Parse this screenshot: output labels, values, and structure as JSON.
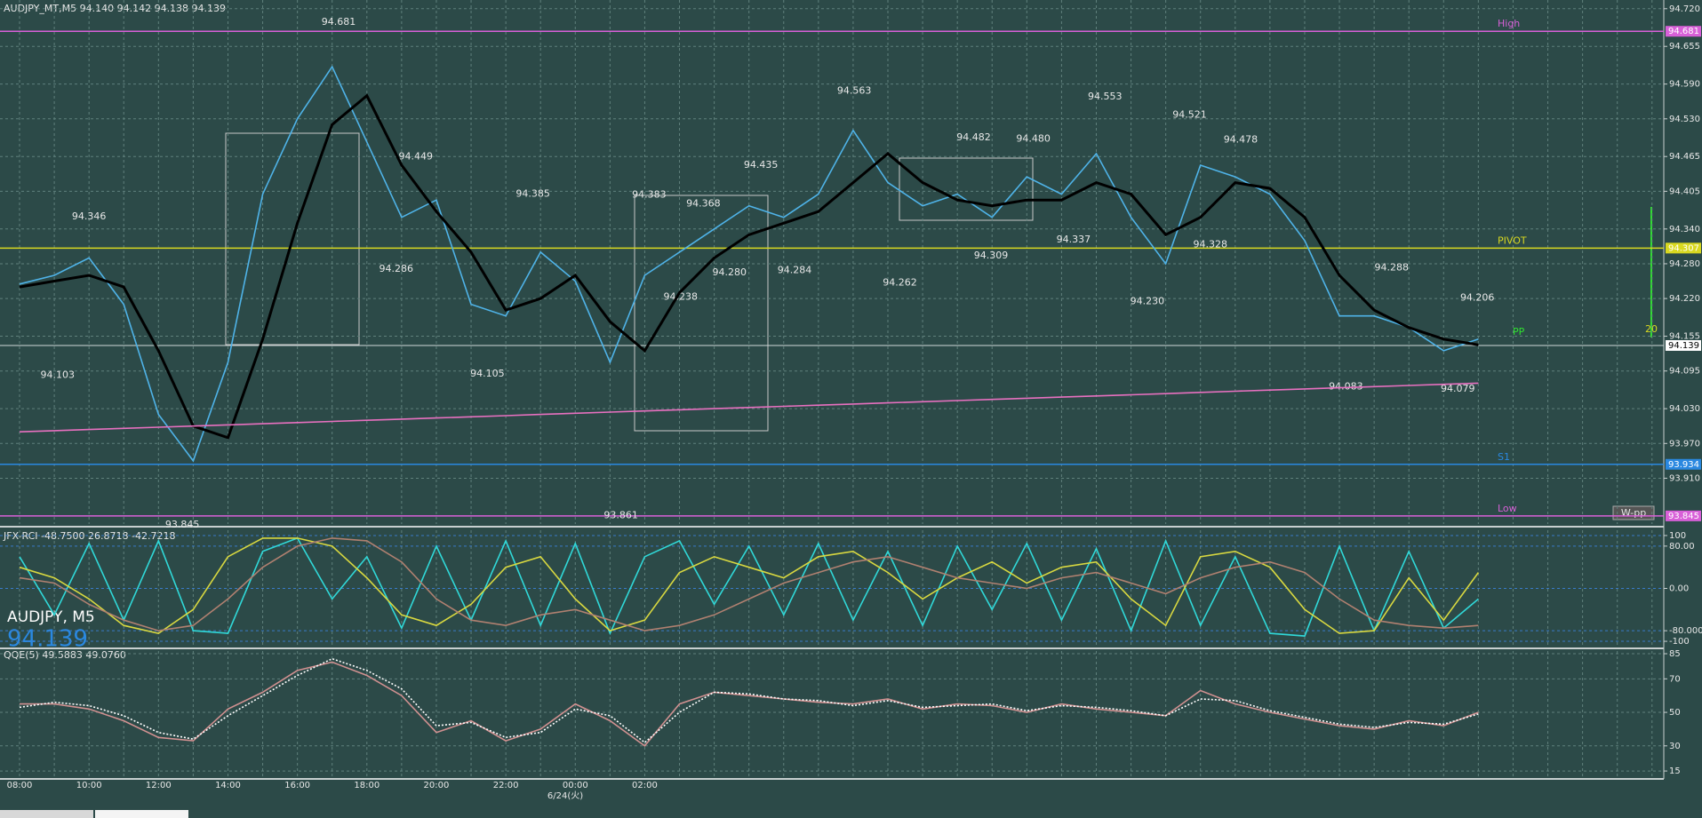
{
  "chart_data": [
    {
      "type": "line",
      "title": "AUDJPY_MT,M5  94.140 94.142 94.138 94.139",
      "categories": [
        "08:00",
        null,
        "10:00",
        null,
        "12:00",
        null,
        "14:00",
        null,
        "16:00",
        null,
        "18:00",
        null,
        "20:00",
        null,
        "22:00",
        null,
        "00:00",
        null,
        "02:00",
        null,
        null,
        null,
        null,
        null,
        null,
        null,
        null,
        null,
        null,
        null,
        null,
        null,
        null,
        null,
        null,
        null,
        null,
        null,
        null,
        null,
        null,
        null,
        null
      ],
      "date_label": "6/24(火)",
      "series": [
        {
          "color": "#4fb3e8",
          "values": [
            94.245,
            94.26,
            94.29,
            94.21,
            94.02,
            93.94,
            94.11,
            94.4,
            94.53,
            94.62,
            94.49,
            94.36,
            94.39,
            94.21,
            94.19,
            94.3,
            94.25,
            94.11,
            94.26,
            94.3,
            94.34,
            94.38,
            94.36,
            94.4,
            94.51,
            94.42,
            94.38,
            94.4,
            94.36,
            94.43,
            94.4,
            94.47,
            94.36,
            94.28,
            94.45,
            94.43,
            94.4,
            94.32,
            94.19,
            94.19,
            94.17,
            94.13,
            94.15
          ]
        },
        {
          "color": "#000000",
          "values": [
            94.24,
            94.25,
            94.26,
            94.24,
            94.13,
            94.0,
            93.98,
            94.15,
            94.35,
            94.52,
            94.57,
            94.45,
            94.37,
            94.3,
            94.2,
            94.22,
            94.26,
            94.18,
            94.13,
            94.23,
            94.29,
            94.33,
            94.35,
            94.37,
            94.42,
            94.47,
            94.42,
            94.39,
            94.38,
            94.39,
            94.39,
            94.42,
            94.4,
            94.33,
            94.36,
            94.42,
            94.41,
            94.36,
            94.26,
            94.2,
            94.17,
            94.15,
            94.14
          ]
        },
        {
          "color": "#e870c0",
          "values": [
            93.99,
            93.992,
            93.994,
            93.996,
            93.998,
            94.0,
            94.002,
            94.004,
            94.006,
            94.008,
            94.01,
            94.012,
            94.014,
            94.016,
            94.018,
            94.02,
            94.022,
            94.024,
            94.026,
            94.028,
            94.03,
            94.032,
            94.034,
            94.036,
            94.038,
            94.04,
            94.042,
            94.044,
            94.046,
            94.048,
            94.05,
            94.052,
            94.054,
            94.056,
            94.058,
            94.06,
            94.062,
            94.064,
            94.066,
            94.068,
            94.07,
            94.072,
            94.074
          ]
        }
      ],
      "ylim": [
        93.831,
        94.735
      ],
      "yticks": [
        {
          "value": 94.72,
          "label": "94.720"
        },
        94.655,
        {
          "value": 94.59,
          "label": "94.590"
        },
        {
          "value": 94.53,
          "label": "94.530"
        },
        94.465,
        94.405,
        {
          "value": 94.34,
          "label": "94.340"
        },
        {
          "value": 94.28,
          "label": "94.280"
        },
        {
          "value": 94.22,
          "label": "94.220"
        },
        94.155,
        94.095,
        {
          "value": 94.03,
          "label": "94.030"
        },
        {
          "value": 93.97,
          "label": "93.970"
        },
        {
          "value": 93.91,
          "label": "93.910"
        }
      ],
      "grid": true,
      "levels": [
        {
          "name": "High",
          "value": 94.681,
          "color": "#d860d8"
        },
        {
          "name": "PIVOT",
          "value": 94.307,
          "color": "#d8d820"
        },
        {
          "name": "S1",
          "value": 93.934,
          "color": "#2a88e0"
        },
        {
          "name": "Low",
          "value": 93.845,
          "color": "#d860d8"
        }
      ],
      "current_price": 94.139,
      "price_labels": [
        94.681,
        93.845,
        94.346,
        94.103,
        94.449,
        94.286,
        94.385,
        94.105,
        93.861,
        94.383,
        94.368,
        94.238,
        {
          "value": 94.28,
          "label": "94.280"
        },
        94.435,
        94.284,
        94.563,
        94.262,
        94.482,
        94.309,
        {
          "value": 94.48,
          "label": "94.480"
        },
        94.337,
        94.553,
        {
          "value": 94.23,
          "label": "94.230"
        },
        94.521,
        94.328,
        94.478,
        94.288,
        94.206,
        94.083,
        94.079
      ],
      "overlay_symbol": "AUDJPY, M5",
      "overlay_price": 94.139,
      "button": "W-pp",
      "side_value": 20,
      "side_label": "PP"
    },
    {
      "type": "line",
      "title": "JFX-RCI -48.7500 26.8718 -42.7218",
      "ylim": [
        -110,
        110
      ],
      "yticks": [
        100,
        {
          "value": 80,
          "label": "80.00"
        },
        {
          "value": 0,
          "label": "0.00"
        },
        {
          "value": -80,
          "label": "-80.000"
        },
        -100
      ],
      "series": [
        {
          "color": "#30d8d8",
          "values": [
            60,
            -50,
            85,
            -60,
            90,
            -80,
            -85,
            70,
            95,
            -20,
            60,
            -75,
            80,
            -60,
            90,
            -70,
            85,
            -85,
            60,
            90,
            -30,
            80,
            -50,
            85,
            -60,
            70,
            -70,
            80,
            -40,
            85,
            -60,
            75,
            -80,
            90,
            -70,
            60,
            -85,
            -90,
            80,
            -80,
            70,
            -75,
            -20
          ]
        },
        {
          "color": "#d8d840",
          "values": [
            40,
            20,
            -20,
            -70,
            -85,
            -40,
            60,
            95,
            95,
            80,
            20,
            -50,
            -70,
            -30,
            40,
            60,
            -20,
            -80,
            -60,
            30,
            60,
            40,
            20,
            60,
            70,
            30,
            -20,
            20,
            50,
            10,
            40,
            50,
            -20,
            -70,
            60,
            70,
            40,
            -40,
            -85,
            -80,
            20,
            -60,
            30
          ]
        },
        {
          "color": "#b08070",
          "values": [
            20,
            10,
            -30,
            -60,
            -80,
            -70,
            -20,
            40,
            80,
            95,
            90,
            50,
            -20,
            -60,
            -70,
            -50,
            -40,
            -60,
            -80,
            -70,
            -50,
            -20,
            10,
            30,
            50,
            60,
            40,
            20,
            10,
            0,
            20,
            30,
            10,
            -10,
            20,
            40,
            50,
            30,
            -20,
            -60,
            -70,
            -75,
            -70
          ]
        }
      ]
    },
    {
      "type": "line",
      "title": "QQE(5) 49.5883 49.0760",
      "ylim": [
        10.8,
        86.6
      ],
      "yticks": [
        85,
        70,
        50,
        30,
        15
      ],
      "series": [
        {
          "color": "#d09090",
          "values": [
            55,
            55,
            52,
            45,
            35,
            33,
            52,
            62,
            75,
            80,
            72,
            60,
            38,
            45,
            33,
            40,
            55,
            45,
            30,
            55,
            62,
            60,
            58,
            56,
            55,
            58,
            52,
            55,
            54,
            50,
            55,
            52,
            50,
            48,
            63,
            55,
            50,
            46,
            42,
            40,
            45,
            42,
            50
          ]
        },
        {
          "color": "#ffffff",
          "dash": true,
          "values": [
            53,
            56,
            54,
            48,
            38,
            34,
            48,
            60,
            72,
            82,
            75,
            64,
            42,
            44,
            35,
            38,
            52,
            48,
            32,
            50,
            62,
            61,
            58,
            57,
            54,
            57,
            53,
            54,
            55,
            51,
            54,
            53,
            51,
            48,
            58,
            57,
            51,
            47,
            43,
            41,
            44,
            43,
            49
          ]
        }
      ]
    }
  ]
}
